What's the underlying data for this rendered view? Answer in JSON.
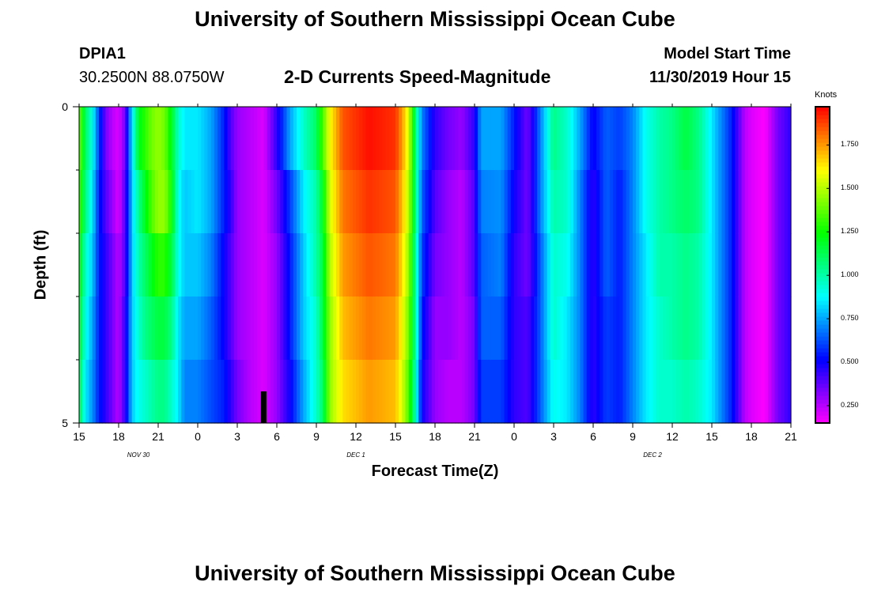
{
  "page_title": "University of Southern Mississippi Ocean Cube",
  "footer_title": "University of Southern Mississippi Ocean Cube",
  "station": {
    "id": "DPIA1",
    "coords": "30.2500N 88.0750W"
  },
  "model": {
    "label": "Model Start Time",
    "value": "11/30/2019 Hour 15"
  },
  "chart_data": {
    "type": "heatmap",
    "title": "2-D Currents Speed-Magnitude",
    "xlabel": "Forecast Time(Z)",
    "ylabel": "Depth (ft)",
    "x_ticks": [
      "15",
      "18",
      "21",
      "0",
      "3",
      "6",
      "9",
      "12",
      "15",
      "18",
      "21",
      "0",
      "3",
      "6",
      "9",
      "12",
      "15",
      "18",
      "21"
    ],
    "x_hours": [
      0,
      3,
      6,
      9,
      12,
      15,
      18,
      21,
      24,
      27,
      30,
      33,
      36,
      39,
      42,
      45,
      48,
      51,
      54
    ],
    "date_labels": [
      {
        "text": "NOV 30",
        "hour": 4.5
      },
      {
        "text": "DEC 1",
        "hour": 21
      },
      {
        "text": "DEC 2",
        "hour": 43.5
      }
    ],
    "y_ticks": [
      "0",
      "5"
    ],
    "ylim": [
      0,
      5
    ],
    "depth_rows": 5,
    "xlim_hours": [
      0,
      54
    ],
    "colorbar": {
      "unit": "Knots",
      "min": 0.15,
      "max": 1.97,
      "ticks": [
        "0.250",
        "0.500",
        "0.750",
        "1.000",
        "1.250",
        "1.500",
        "1.750"
      ],
      "tick_values": [
        0.25,
        0.5,
        0.75,
        1.0,
        1.25,
        1.5,
        1.75
      ]
    },
    "current_time_marker_hour": 14,
    "speed_profile_knots": [
      [
        0,
        1.4,
        1.35,
        1.25,
        1.2,
        1.15,
        1.1
      ],
      [
        0.5,
        1.1,
        1.05,
        0.95,
        0.9,
        0.85,
        0.8
      ],
      [
        1,
        0.9,
        0.85,
        0.8,
        0.75,
        0.72,
        0.7
      ],
      [
        1.5,
        0.6,
        0.55,
        0.55,
        0.55,
        0.55,
        0.55
      ],
      [
        2,
        0.35,
        0.4,
        0.45,
        0.45,
        0.45,
        0.5
      ],
      [
        2.5,
        0.25,
        0.3,
        0.35,
        0.35,
        0.35,
        0.4
      ],
      [
        3,
        0.2,
        0.2,
        0.25,
        0.25,
        0.25,
        0.25
      ],
      [
        3.5,
        0.35,
        0.4,
        0.4,
        0.45,
        0.45,
        0.5
      ],
      [
        4,
        0.85,
        0.8,
        0.8,
        0.8,
        0.8,
        0.8
      ],
      [
        4.5,
        1.2,
        1.05,
        1.0,
        0.95,
        0.9,
        0.85
      ],
      [
        5,
        1.3,
        1.2,
        1.1,
        1.05,
        0.95,
        0.9
      ],
      [
        5.5,
        1.4,
        1.35,
        1.2,
        1.1,
        1.0,
        0.95
      ],
      [
        6,
        1.45,
        1.45,
        1.3,
        1.15,
        1.05,
        0.95
      ],
      [
        6.5,
        1.4,
        1.45,
        1.3,
        1.15,
        1.05,
        1.0
      ],
      [
        7,
        1.2,
        1.25,
        1.15,
        1.05,
        0.95,
        0.9
      ],
      [
        7.5,
        0.95,
        0.9,
        0.9,
        0.85,
        0.85,
        0.8
      ],
      [
        8,
        0.85,
        0.8,
        0.8,
        0.75,
        0.7,
        0.7
      ],
      [
        9,
        0.85,
        0.85,
        0.8,
        0.75,
        0.7,
        0.65
      ],
      [
        10,
        0.75,
        0.75,
        0.7,
        0.65,
        0.62,
        0.6
      ],
      [
        11,
        0.55,
        0.55,
        0.5,
        0.5,
        0.55,
        0.55
      ],
      [
        11.5,
        0.4,
        0.45,
        0.4,
        0.4,
        0.45,
        0.5
      ],
      [
        12,
        0.3,
        0.3,
        0.3,
        0.3,
        0.35,
        0.35
      ],
      [
        13,
        0.25,
        0.25,
        0.25,
        0.25,
        0.25,
        0.25
      ],
      [
        14,
        0.2,
        0.2,
        0.2,
        0.2,
        0.2,
        0.2
      ],
      [
        15,
        0.45,
        0.35,
        0.3,
        0.3,
        0.3,
        0.3
      ],
      [
        16,
        0.75,
        0.6,
        0.55,
        0.55,
        0.5,
        0.5
      ],
      [
        17,
        0.95,
        0.85,
        0.8,
        0.8,
        0.75,
        0.75
      ],
      [
        18,
        1.1,
        1.0,
        1.0,
        0.95,
        0.95,
        0.95
      ],
      [
        18.5,
        1.35,
        1.2,
        1.15,
        1.15,
        1.1,
        1.1
      ],
      [
        19,
        1.6,
        1.55,
        1.5,
        1.45,
        1.45,
        1.4
      ],
      [
        20,
        1.85,
        1.8,
        1.75,
        1.7,
        1.65,
        1.6
      ],
      [
        22,
        1.95,
        1.9,
        1.85,
        1.8,
        1.75,
        1.7
      ],
      [
        24,
        1.9,
        1.85,
        1.8,
        1.75,
        1.7,
        1.65
      ],
      [
        24.5,
        1.75,
        1.7,
        1.65,
        1.6,
        1.55,
        1.5
      ],
      [
        25,
        1.55,
        1.5,
        1.45,
        1.4,
        1.35,
        1.3
      ],
      [
        25.5,
        1.05,
        1.05,
        1.0,
        1.0,
        0.95,
        0.95
      ],
      [
        26,
        0.7,
        0.65,
        0.6,
        0.55,
        0.5,
        0.45
      ],
      [
        27,
        0.45,
        0.4,
        0.35,
        0.3,
        0.3,
        0.3
      ],
      [
        28,
        0.35,
        0.3,
        0.3,
        0.3,
        0.25,
        0.25
      ],
      [
        29,
        0.3,
        0.25,
        0.25,
        0.25,
        0.25,
        0.25
      ],
      [
        30,
        0.45,
        0.4,
        0.4,
        0.35,
        0.35,
        0.35
      ],
      [
        30.5,
        0.75,
        0.7,
        0.65,
        0.65,
        0.6,
        0.55
      ],
      [
        32,
        0.75,
        0.72,
        0.7,
        0.65,
        0.6,
        0.55
      ],
      [
        33,
        0.55,
        0.5,
        0.45,
        0.45,
        0.45,
        0.45
      ],
      [
        34,
        0.35,
        0.35,
        0.35,
        0.4,
        0.4,
        0.4
      ],
      [
        35,
        0.7,
        0.7,
        0.65,
        0.65,
        0.65,
        0.65
      ],
      [
        36,
        1.05,
        1.0,
        0.95,
        0.95,
        0.9,
        0.9
      ],
      [
        37,
        0.95,
        0.95,
        0.9,
        0.85,
        0.85,
        0.85
      ],
      [
        38,
        0.75,
        0.7,
        0.7,
        0.7,
        0.7,
        0.7
      ],
      [
        39,
        0.5,
        0.45,
        0.45,
        0.45,
        0.45,
        0.45
      ],
      [
        40,
        0.65,
        0.65,
        0.65,
        0.6,
        0.6,
        0.6
      ],
      [
        41,
        0.6,
        0.55,
        0.55,
        0.55,
        0.55,
        0.55
      ],
      [
        42,
        0.7,
        0.7,
        0.7,
        0.7,
        0.7,
        0.7
      ],
      [
        43,
        0.9,
        0.9,
        0.85,
        0.85,
        0.85,
        0.85
      ],
      [
        44,
        1.0,
        1.0,
        1.0,
        0.95,
        0.95,
        0.9
      ],
      [
        45,
        1.05,
        1.05,
        1.0,
        1.0,
        0.95,
        0.95
      ],
      [
        46,
        1.15,
        1.1,
        1.05,
        1.05,
        1.0,
        1.0
      ],
      [
        47,
        1.05,
        1.05,
        1.0,
        1.0,
        0.95,
        0.95
      ],
      [
        48,
        0.85,
        0.85,
        0.85,
        0.85,
        0.85,
        0.85
      ],
      [
        49.5,
        0.55,
        0.55,
        0.55,
        0.55,
        0.55,
        0.55
      ],
      [
        50.5,
        0.25,
        0.25,
        0.25,
        0.25,
        0.25,
        0.25
      ],
      [
        51,
        0.2,
        0.2,
        0.2,
        0.2,
        0.2,
        0.2
      ],
      [
        52,
        0.15,
        0.15,
        0.15,
        0.15,
        0.15,
        0.15
      ],
      [
        53,
        0.35,
        0.35,
        0.35,
        0.35,
        0.35,
        0.35
      ],
      [
        54,
        0.45,
        0.45,
        0.45,
        0.45,
        0.45,
        0.45
      ]
    ]
  }
}
